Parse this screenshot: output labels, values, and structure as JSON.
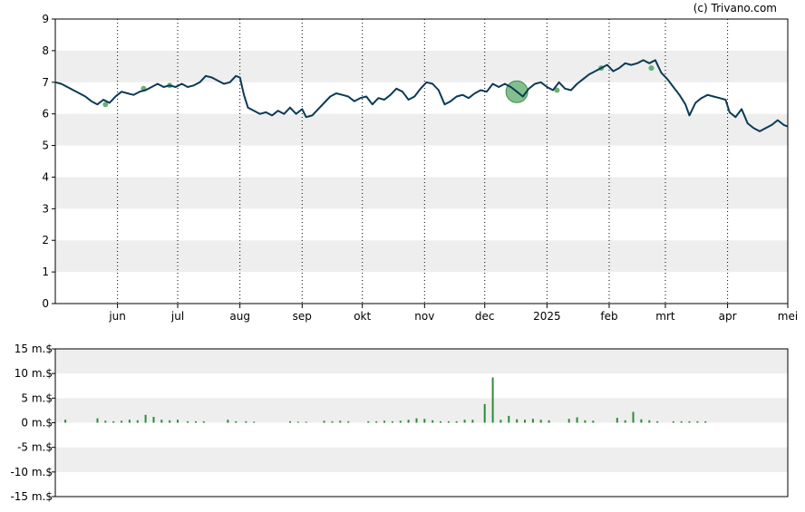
{
  "credit": "(c) Trivano.com",
  "colors": {
    "price_line": "#0b3a55",
    "volume_bar": "#2e8b3a",
    "marker": "#5aa868",
    "band": "#eeeeee",
    "grid": "#000000",
    "frame": "#000000"
  },
  "chart_data": [
    {
      "type": "line",
      "name": "price-chart",
      "ylim": [
        0,
        9
      ],
      "yticks": [
        "0",
        "1",
        "2",
        "3",
        "4",
        "5",
        "6",
        "7",
        "8",
        "9"
      ],
      "xlim": [
        "2024-05-01",
        "2025-05-01"
      ],
      "xticks": [
        {
          "date": "2024-06-01",
          "label": "jun"
        },
        {
          "date": "2024-07-01",
          "label": "jul"
        },
        {
          "date": "2024-08-01",
          "label": "aug"
        },
        {
          "date": "2024-09-01",
          "label": "sep"
        },
        {
          "date": "2024-10-01",
          "label": "okt"
        },
        {
          "date": "2024-11-01",
          "label": "nov"
        },
        {
          "date": "2024-12-01",
          "label": "dec"
        },
        {
          "date": "2025-01-01",
          "label": "2025"
        },
        {
          "date": "2025-02-01",
          "label": "feb"
        },
        {
          "date": "2025-03-01",
          "label": "mrt"
        },
        {
          "date": "2025-04-01",
          "label": "apr"
        },
        {
          "date": "2025-05-01",
          "label": "mei"
        }
      ],
      "grid": "vertical dotted at month ticks, alternating horizontal bands",
      "series": [
        {
          "points": [
            [
              "2024-05-01",
              7.0
            ],
            [
              "2024-05-04",
              6.95
            ],
            [
              "2024-05-07",
              6.85
            ],
            [
              "2024-05-10",
              6.75
            ],
            [
              "2024-05-13",
              6.65
            ],
            [
              "2024-05-16",
              6.55
            ],
            [
              "2024-05-19",
              6.4
            ],
            [
              "2024-05-22",
              6.3
            ],
            [
              "2024-05-25",
              6.45
            ],
            [
              "2024-05-28",
              6.35
            ],
            [
              "2024-05-31",
              6.55
            ],
            [
              "2024-06-03",
              6.7
            ],
            [
              "2024-06-06",
              6.65
            ],
            [
              "2024-06-09",
              6.6
            ],
            [
              "2024-06-12",
              6.7
            ],
            [
              "2024-06-15",
              6.75
            ],
            [
              "2024-06-18",
              6.85
            ],
            [
              "2024-06-21",
              6.95
            ],
            [
              "2024-06-24",
              6.85
            ],
            [
              "2024-06-27",
              6.9
            ],
            [
              "2024-06-30",
              6.85
            ],
            [
              "2024-07-03",
              6.95
            ],
            [
              "2024-07-06",
              6.85
            ],
            [
              "2024-07-09",
              6.9
            ],
            [
              "2024-07-12",
              7.0
            ],
            [
              "2024-07-15",
              7.2
            ],
            [
              "2024-07-18",
              7.15
            ],
            [
              "2024-07-21",
              7.05
            ],
            [
              "2024-07-24",
              6.95
            ],
            [
              "2024-07-27",
              7.0
            ],
            [
              "2024-07-30",
              7.2
            ],
            [
              "2024-08-01",
              7.15
            ],
            [
              "2024-08-03",
              6.6
            ],
            [
              "2024-08-05",
              6.2
            ],
            [
              "2024-08-08",
              6.1
            ],
            [
              "2024-08-11",
              6.0
            ],
            [
              "2024-08-14",
              6.05
            ],
            [
              "2024-08-17",
              5.95
            ],
            [
              "2024-08-20",
              6.1
            ],
            [
              "2024-08-23",
              6.0
            ],
            [
              "2024-08-26",
              6.2
            ],
            [
              "2024-08-29",
              6.0
            ],
            [
              "2024-09-01",
              6.15
            ],
            [
              "2024-09-03",
              5.9
            ],
            [
              "2024-09-06",
              5.95
            ],
            [
              "2024-09-09",
              6.15
            ],
            [
              "2024-09-12",
              6.35
            ],
            [
              "2024-09-15",
              6.55
            ],
            [
              "2024-09-18",
              6.65
            ],
            [
              "2024-09-21",
              6.6
            ],
            [
              "2024-09-24",
              6.55
            ],
            [
              "2024-09-27",
              6.4
            ],
            [
              "2024-09-30",
              6.5
            ],
            [
              "2024-10-03",
              6.55
            ],
            [
              "2024-10-06",
              6.3
            ],
            [
              "2024-10-09",
              6.5
            ],
            [
              "2024-10-12",
              6.45
            ],
            [
              "2024-10-15",
              6.6
            ],
            [
              "2024-10-18",
              6.8
            ],
            [
              "2024-10-21",
              6.7
            ],
            [
              "2024-10-24",
              6.45
            ],
            [
              "2024-10-27",
              6.55
            ],
            [
              "2024-10-30",
              6.8
            ],
            [
              "2024-11-02",
              7.0
            ],
            [
              "2024-11-05",
              6.95
            ],
            [
              "2024-11-08",
              6.75
            ],
            [
              "2024-11-11",
              6.3
            ],
            [
              "2024-11-14",
              6.4
            ],
            [
              "2024-11-17",
              6.55
            ],
            [
              "2024-11-20",
              6.6
            ],
            [
              "2024-11-23",
              6.5
            ],
            [
              "2024-11-26",
              6.65
            ],
            [
              "2024-11-29",
              6.75
            ],
            [
              "2024-12-02",
              6.7
            ],
            [
              "2024-12-05",
              6.95
            ],
            [
              "2024-12-08",
              6.85
            ],
            [
              "2024-12-11",
              6.95
            ],
            [
              "2024-12-14",
              6.85
            ],
            [
              "2024-12-17",
              6.7
            ],
            [
              "2024-12-20",
              6.55
            ],
            [
              "2024-12-23",
              6.8
            ],
            [
              "2024-12-26",
              6.95
            ],
            [
              "2024-12-29",
              7.0
            ],
            [
              "2025-01-01",
              6.85
            ],
            [
              "2025-01-04",
              6.75
            ],
            [
              "2025-01-07",
              7.0
            ],
            [
              "2025-01-10",
              6.8
            ],
            [
              "2025-01-13",
              6.75
            ],
            [
              "2025-01-16",
              6.95
            ],
            [
              "2025-01-19",
              7.1
            ],
            [
              "2025-01-22",
              7.25
            ],
            [
              "2025-01-25",
              7.35
            ],
            [
              "2025-01-28",
              7.45
            ],
            [
              "2025-01-31",
              7.55
            ],
            [
              "2025-02-03",
              7.35
            ],
            [
              "2025-02-06",
              7.45
            ],
            [
              "2025-02-09",
              7.6
            ],
            [
              "2025-02-12",
              7.55
            ],
            [
              "2025-02-15",
              7.6
            ],
            [
              "2025-02-18",
              7.7
            ],
            [
              "2025-02-21",
              7.6
            ],
            [
              "2025-02-24",
              7.7
            ],
            [
              "2025-02-27",
              7.3
            ],
            [
              "2025-03-02",
              7.1
            ],
            [
              "2025-03-05",
              6.85
            ],
            [
              "2025-03-08",
              6.6
            ],
            [
              "2025-03-11",
              6.3
            ],
            [
              "2025-03-13",
              5.95
            ],
            [
              "2025-03-16",
              6.35
            ],
            [
              "2025-03-19",
              6.5
            ],
            [
              "2025-03-22",
              6.6
            ],
            [
              "2025-03-25",
              6.55
            ],
            [
              "2025-03-28",
              6.5
            ],
            [
              "2025-03-31",
              6.45
            ],
            [
              "2025-04-02",
              6.05
            ],
            [
              "2025-04-05",
              5.9
            ],
            [
              "2025-04-08",
              6.15
            ],
            [
              "2025-04-11",
              5.7
            ],
            [
              "2025-04-14",
              5.55
            ],
            [
              "2025-04-17",
              5.45
            ],
            [
              "2025-04-20",
              5.55
            ],
            [
              "2025-04-23",
              5.65
            ],
            [
              "2025-04-26",
              5.8
            ],
            [
              "2025-04-29",
              5.65
            ],
            [
              "2025-05-01",
              5.6
            ]
          ],
          "markers": [
            {
              "date": "2024-05-26",
              "value": 6.3,
              "size": "small"
            },
            {
              "date": "2024-06-14",
              "value": 6.8,
              "size": "small"
            },
            {
              "date": "2024-06-27",
              "value": 6.9,
              "size": "small"
            },
            {
              "date": "2024-12-17",
              "value": 6.7,
              "size": "large"
            },
            {
              "date": "2025-01-06",
              "value": 6.75,
              "size": "small"
            },
            {
              "date": "2025-01-28",
              "value": 7.45,
              "size": "small"
            },
            {
              "date": "2025-02-22",
              "value": 7.45,
              "size": "small"
            }
          ]
        }
      ]
    },
    {
      "type": "bar",
      "name": "volume-chart",
      "ylim": [
        -15,
        15
      ],
      "yticks": [
        "15 m.$",
        "10 m.$",
        "5 m.$",
        "0 m.$",
        "-5 m.$",
        "-10 m.$",
        "-15 m.$"
      ],
      "xlim": [
        "2024-05-01",
        "2025-05-01"
      ],
      "series": [
        {
          "points": [
            [
              "2024-05-06",
              0.6
            ],
            [
              "2024-05-22",
              0.9
            ],
            [
              "2024-05-26",
              0.4
            ],
            [
              "2024-05-30",
              0.3
            ],
            [
              "2024-06-03",
              0.4
            ],
            [
              "2024-06-07",
              0.6
            ],
            [
              "2024-06-11",
              0.5
            ],
            [
              "2024-06-15",
              1.6
            ],
            [
              "2024-06-19",
              1.2
            ],
            [
              "2024-06-23",
              0.6
            ],
            [
              "2024-06-27",
              0.5
            ],
            [
              "2024-07-01",
              0.6
            ],
            [
              "2024-07-06",
              0.3
            ],
            [
              "2024-07-10",
              0.3
            ],
            [
              "2024-07-14",
              0.3
            ],
            [
              "2024-07-26",
              0.6
            ],
            [
              "2024-07-30",
              0.3
            ],
            [
              "2024-08-04",
              0.3
            ],
            [
              "2024-08-08",
              0.2
            ],
            [
              "2024-08-26",
              0.3
            ],
            [
              "2024-08-30",
              0.2
            ],
            [
              "2024-09-03",
              0.2
            ],
            [
              "2024-09-12",
              0.4
            ],
            [
              "2024-09-16",
              0.3
            ],
            [
              "2024-09-20",
              0.4
            ],
            [
              "2024-09-24",
              0.3
            ],
            [
              "2024-10-04",
              0.3
            ],
            [
              "2024-10-08",
              0.3
            ],
            [
              "2024-10-12",
              0.4
            ],
            [
              "2024-10-16",
              0.3
            ],
            [
              "2024-10-20",
              0.4
            ],
            [
              "2024-10-24",
              0.6
            ],
            [
              "2024-10-28",
              0.9
            ],
            [
              "2024-11-01",
              0.8
            ],
            [
              "2024-11-05",
              0.5
            ],
            [
              "2024-11-09",
              0.3
            ],
            [
              "2024-11-13",
              0.3
            ],
            [
              "2024-11-17",
              0.3
            ],
            [
              "2024-11-21",
              0.6
            ],
            [
              "2024-11-25",
              0.6
            ],
            [
              "2024-12-01",
              3.8
            ],
            [
              "2024-12-05",
              9.2
            ],
            [
              "2024-12-09",
              0.6
            ],
            [
              "2024-12-13",
              1.4
            ],
            [
              "2024-12-17",
              0.7
            ],
            [
              "2024-12-21",
              0.6
            ],
            [
              "2024-12-25",
              0.8
            ],
            [
              "2024-12-29",
              0.6
            ],
            [
              "2025-01-02",
              0.5
            ],
            [
              "2025-01-12",
              0.8
            ],
            [
              "2025-01-16",
              1.1
            ],
            [
              "2025-01-20",
              0.5
            ],
            [
              "2025-01-24",
              0.4
            ],
            [
              "2025-02-05",
              1.0
            ],
            [
              "2025-02-09",
              0.5
            ],
            [
              "2025-02-13",
              2.2
            ],
            [
              "2025-02-17",
              0.7
            ],
            [
              "2025-02-21",
              0.5
            ],
            [
              "2025-02-25",
              0.3
            ],
            [
              "2025-03-05",
              0.3
            ],
            [
              "2025-03-09",
              0.3
            ],
            [
              "2025-03-13",
              0.3
            ],
            [
              "2025-03-17",
              0.3
            ],
            [
              "2025-03-21",
              0.3
            ]
          ]
        }
      ]
    }
  ]
}
